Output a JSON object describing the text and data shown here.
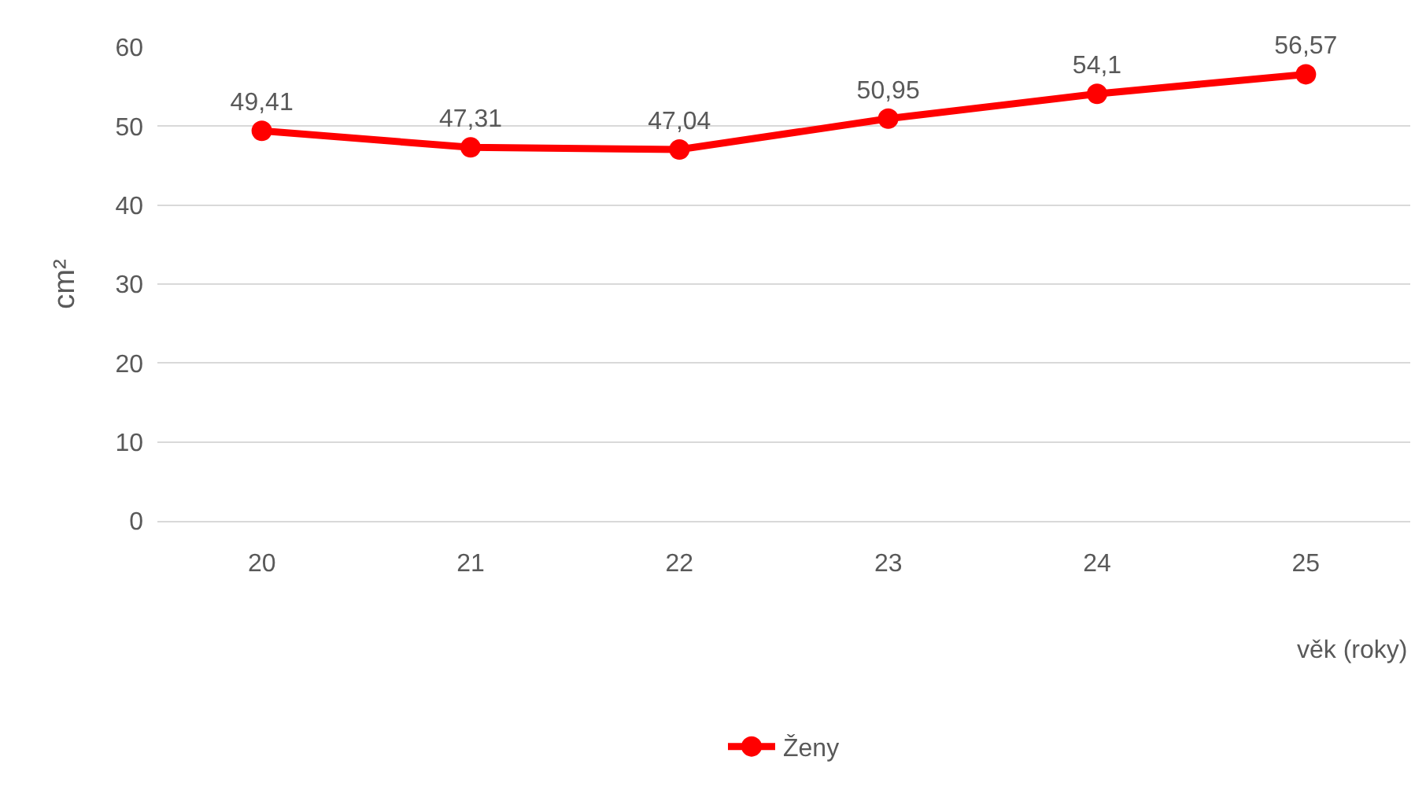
{
  "chart_data": {
    "type": "line",
    "ylabel": "cm²",
    "xlabel": "věk (roky)",
    "categories": [
      "20",
      "21",
      "22",
      "23",
      "24",
      "25"
    ],
    "series": [
      {
        "name": "Ženy",
        "color": "#ff0000",
        "values": [
          49.41,
          47.31,
          47.04,
          50.95,
          54.1,
          56.57
        ],
        "value_labels": [
          "49,41",
          "47,31",
          "47,04",
          "50,95",
          "54,1",
          "56,57"
        ]
      }
    ],
    "ylim": [
      0,
      60
    ],
    "yticks": [
      0,
      10,
      20,
      30,
      40,
      50,
      60
    ],
    "grid": "y",
    "legend": "bottom",
    "marker": "circle",
    "line_style": "solid"
  }
}
